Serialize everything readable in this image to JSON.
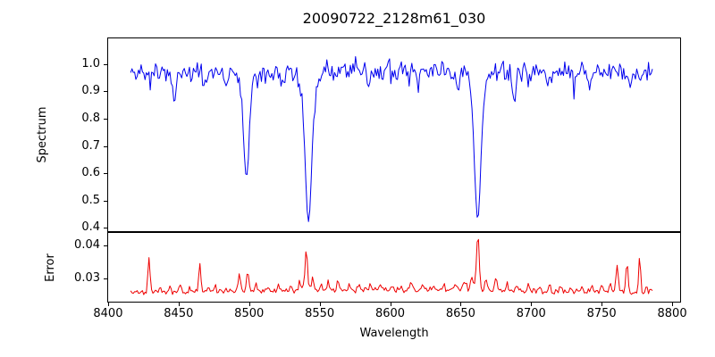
{
  "chart_data": {
    "type": "line",
    "title": "20090722_2128m61_030",
    "xlabel": "Wavelength",
    "grid": false,
    "legend": null,
    "xlim": [
      8399.4,
      8806.3
    ],
    "x_data_range": [
      8416,
      8786
    ],
    "x_ticks": [
      8400,
      8450,
      8500,
      8550,
      8600,
      8650,
      8700,
      8750,
      8800
    ],
    "x_tick_labels": [
      "8400",
      "8450",
      "8500",
      "8550",
      "8600",
      "8650",
      "8700",
      "8750",
      "8800"
    ],
    "panels": [
      {
        "name": "spectrum",
        "ylabel": "Spectrum",
        "ylim": [
          0.384,
          1.098
        ],
        "y_ticks": [
          0.4,
          0.5,
          0.6,
          0.7,
          0.8,
          0.9,
          1.0
        ],
        "y_tick_labels": [
          "0.4",
          "0.5",
          "0.6",
          "0.7",
          "0.8",
          "0.9",
          "1.0"
        ],
        "color": "#0000ee",
        "line_width": 1,
        "n_points": 400,
        "seed": 11,
        "continuum": {
          "base": 0.968,
          "amp": 0.008,
          "x0": 8430,
          "span": 370
        },
        "noise": {
          "amp": 0.042,
          "dip_prob": 0.07,
          "dip_depth": 0.075,
          "spike_prob": 0.03,
          "spike_amp": 0.05
        },
        "absorption_lines": [
          {
            "center": 8498.0,
            "depth": 0.345,
            "sigma": 1.9,
            "wing_depth": 0.04,
            "wing_sigma": 5
          },
          {
            "center": 8542.1,
            "depth": 0.5,
            "sigma": 2.2,
            "wing_depth": 0.055,
            "wing_sigma": 6
          },
          {
            "center": 8662.1,
            "depth": 0.49,
            "sigma": 2.2,
            "wing_depth": 0.055,
            "wing_sigma": 6
          }
        ],
        "extra_dips": [
          [
            8447,
            0.09,
            1.2
          ],
          [
            8468,
            0.05,
            1.0
          ],
          [
            8484,
            0.06,
            1.0
          ],
          [
            8524,
            0.05,
            1.0
          ],
          [
            8585,
            0.07,
            1.0
          ],
          [
            8620,
            0.05,
            1.0
          ],
          [
            8648,
            0.07,
            1.0
          ],
          [
            8688,
            0.1,
            1.3
          ],
          [
            8712,
            0.05,
            1.0
          ],
          [
            8742,
            0.06,
            1.0
          ],
          [
            8770,
            0.05,
            1.0
          ]
        ]
      },
      {
        "name": "error",
        "ylabel": "Error",
        "ylim": [
          0.0227,
          0.0441
        ],
        "y_ticks": [
          0.03,
          0.04
        ],
        "y_tick_labels": [
          "0.03",
          "0.04"
        ],
        "color": "#ee0000",
        "line_width": 1,
        "n_points": 400,
        "seed": 5,
        "baseline": {
          "base": 0.0262,
          "amp": 0.0004,
          "x0": 8500,
          "span": 200
        },
        "noise": {
          "amp": 0.001,
          "dip_prob": 0.0,
          "dip_depth": 0.0,
          "spike_prob": 0.0,
          "spike_amp": 0.0
        },
        "spikes": [
          [
            8429,
            0.0112,
            0.7
          ],
          [
            8437,
            0.0014,
            0.7
          ],
          [
            8444,
            0.0018,
            0.7
          ],
          [
            8451,
            0.0018,
            0.7
          ],
          [
            8458,
            0.0013,
            0.7
          ],
          [
            8465,
            0.0093,
            0.7
          ],
          [
            8471,
            0.0018,
            0.7
          ],
          [
            8476,
            0.002,
            0.7
          ],
          [
            8483,
            0.001,
            0.7
          ],
          [
            8493,
            0.0048,
            0.9
          ],
          [
            8499,
            0.0058,
            0.9
          ],
          [
            8505,
            0.0024,
            0.8
          ],
          [
            8513,
            0.001,
            0.7
          ],
          [
            8521,
            0.0016,
            0.7
          ],
          [
            8529,
            0.001,
            0.7
          ],
          [
            8536,
            0.0028,
            0.8
          ],
          [
            8540.5,
            0.012,
            0.9
          ],
          [
            8545,
            0.0038,
            0.8
          ],
          [
            8551,
            0.002,
            0.7
          ],
          [
            8556,
            0.0026,
            0.7
          ],
          [
            8563,
            0.003,
            0.8
          ],
          [
            8571,
            0.0013,
            0.7
          ],
          [
            8578,
            0.0016,
            0.7
          ],
          [
            8586,
            0.0013,
            0.7
          ],
          [
            8593,
            0.0018,
            0.7
          ],
          [
            8601,
            0.001,
            0.7
          ],
          [
            8608,
            0.0013,
            0.7
          ],
          [
            8615,
            0.002,
            0.7
          ],
          [
            8623,
            0.0016,
            0.7
          ],
          [
            8631,
            0.001,
            0.7
          ],
          [
            8638,
            0.0016,
            0.7
          ],
          [
            8646,
            0.0013,
            0.7
          ],
          [
            8653,
            0.003,
            1.1
          ],
          [
            8658,
            0.0045,
            0.9
          ],
          [
            8662.2,
            0.017,
            1.0
          ],
          [
            8668,
            0.0036,
            0.8
          ],
          [
            8675,
            0.0042,
            0.8
          ],
          [
            8683,
            0.0026,
            0.7
          ],
          [
            8690,
            0.0016,
            0.7
          ],
          [
            8698,
            0.002,
            0.7
          ],
          [
            8706,
            0.0013,
            0.7
          ],
          [
            8713,
            0.0023,
            0.7
          ],
          [
            8721,
            0.0016,
            0.7
          ],
          [
            8728,
            0.0013,
            0.7
          ],
          [
            8736,
            0.0018,
            0.7
          ],
          [
            8743,
            0.0016,
            0.7
          ],
          [
            8750,
            0.002,
            0.7
          ],
          [
            8756,
            0.0028,
            0.7
          ],
          [
            8761,
            0.0082,
            0.8
          ],
          [
            8768,
            0.0092,
            0.8
          ],
          [
            8777,
            0.0112,
            0.7
          ],
          [
            8782,
            0.0018,
            0.7
          ]
        ]
      }
    ]
  }
}
